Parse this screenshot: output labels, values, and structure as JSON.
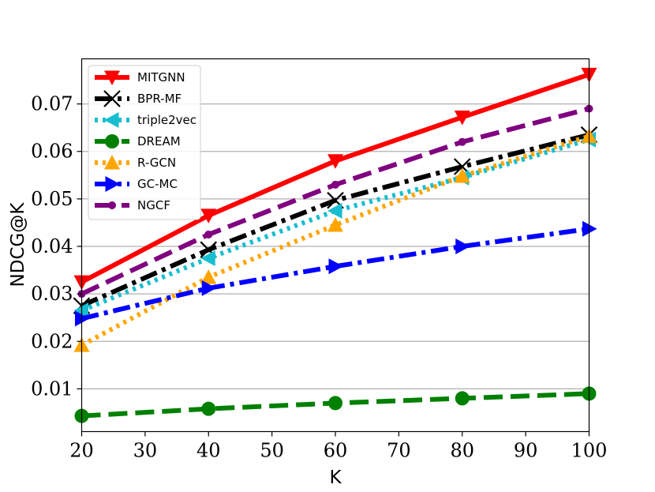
{
  "chart_data": {
    "type": "line",
    "title": "",
    "xlabel": "K",
    "ylabel": "NDCG@K",
    "x": [
      20,
      40,
      60,
      80,
      100
    ],
    "xlim": [
      20,
      100
    ],
    "ylim": [
      0.001,
      0.0795
    ],
    "xticks": [
      "20",
      "30",
      "40",
      "50",
      "60",
      "70",
      "80",
      "90",
      "100"
    ],
    "yticks": [
      "0.01",
      "0.02",
      "0.03",
      "0.04",
      "0.05",
      "0.06",
      "0.07"
    ],
    "grid": "horizontal",
    "legend_position": "top-left",
    "series": [
      {
        "name": "MITGNN",
        "values": [
          0.0325,
          0.0465,
          0.058,
          0.0672,
          0.0762
        ],
        "color": "#ff0000",
        "dash": "solid",
        "marker": "triangle-down"
      },
      {
        "name": "BPR-MF",
        "values": [
          0.0275,
          0.0393,
          0.0497,
          0.0568,
          0.0635
        ],
        "color": "#000000",
        "dash": "dashdot",
        "marker": "x"
      },
      {
        "name": "triple2vec",
        "values": [
          0.0265,
          0.0375,
          0.0475,
          0.0545,
          0.0625
        ],
        "color": "#17becf",
        "dash": "dotted",
        "marker": "triangle-left"
      },
      {
        "name": "DREAM",
        "values": [
          0.0043,
          0.0058,
          0.007,
          0.008,
          0.009
        ],
        "color": "#008000",
        "dash": "dashed",
        "marker": "circle"
      },
      {
        "name": "R-GCN",
        "values": [
          0.0192,
          0.0335,
          0.0445,
          0.0548,
          0.0632
        ],
        "color": "#ffa500",
        "dash": "dotted",
        "marker": "triangle-up"
      },
      {
        "name": "GC-MC",
        "values": [
          0.0248,
          0.0312,
          0.0358,
          0.04,
          0.0437
        ],
        "color": "#0000ff",
        "dash": "dashdot",
        "marker": "triangle-right"
      },
      {
        "name": "NGCF",
        "values": [
          0.03,
          0.0425,
          0.053,
          0.062,
          0.069
        ],
        "color": "#800080",
        "dash": "dashed",
        "marker": "small-circle"
      }
    ]
  }
}
